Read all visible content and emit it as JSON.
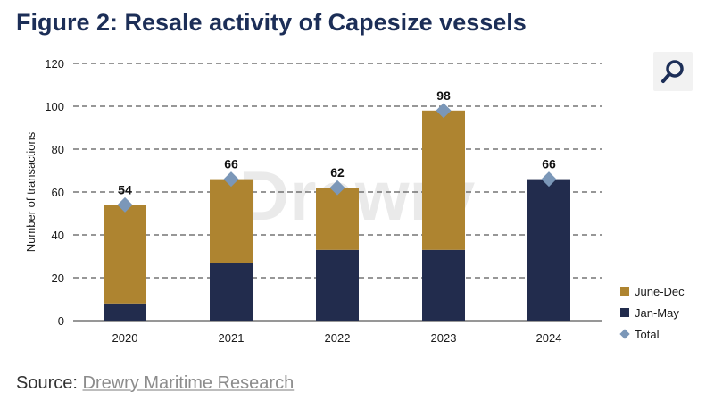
{
  "header": {
    "title": "Figure 2: Resale activity of Capesize vessels"
  },
  "toolbar": {
    "search_icon": "magnifier-icon"
  },
  "watermark": {
    "text": "Drewry"
  },
  "footer": {
    "source_label": "Source:",
    "source_name": "Drewry Maritime Research"
  },
  "colors": {
    "june_dec": "#ae8430",
    "jan_may": "#222c4d",
    "total": "#7b97b8",
    "title": "#1c2e57",
    "grid": "#595959"
  },
  "chart_data": {
    "type": "bar",
    "stacked": true,
    "categories": [
      "2020",
      "2021",
      "2022",
      "2023",
      "2024"
    ],
    "series": [
      {
        "name": "Jan-May",
        "values": [
          8,
          27,
          33,
          33,
          66
        ]
      },
      {
        "name": "June-Dec",
        "values": [
          46,
          39,
          29,
          65,
          0
        ]
      }
    ],
    "totals": {
      "name": "Total",
      "values": [
        54,
        66,
        62,
        98,
        66
      ]
    },
    "legend_order": [
      "June-Dec",
      "Jan-May",
      "Total"
    ],
    "ylabel": "Number of transactions",
    "xlabel": "",
    "ylim": [
      0,
      120
    ],
    "yticks": [
      0,
      20,
      40,
      60,
      80,
      100,
      120
    ],
    "grid": true,
    "legend_position": "bottom-right"
  }
}
